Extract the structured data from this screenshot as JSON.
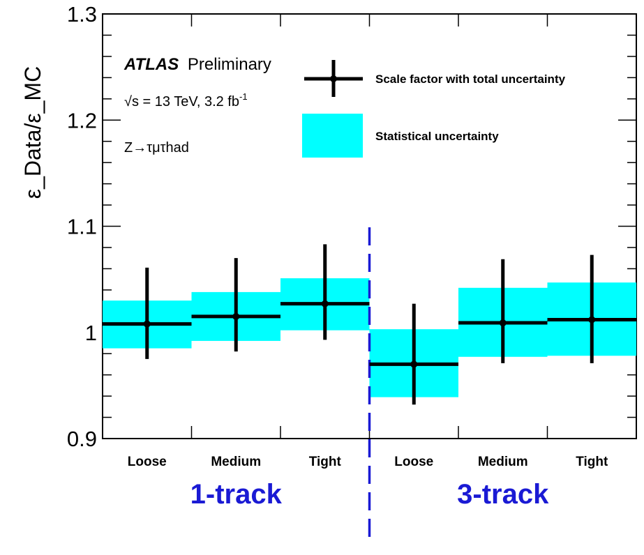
{
  "chart_data": {
    "type": "scatter",
    "categories": [
      "Loose",
      "Medium",
      "Tight",
      "Loose",
      "Medium",
      "Tight"
    ],
    "groups": [
      "1-track",
      "3-track"
    ],
    "ylabel": "ε_Data/ε_MC",
    "ylim": [
      0.9,
      1.3
    ],
    "ytick_labels": [
      "0.9",
      "1",
      "1.1",
      "1.2",
      "1.3"
    ],
    "annotations": {
      "experiment": "ATLAS",
      "status": "Preliminary",
      "energy": "√s = 13 TeV, 3.2 fb",
      "energy_sup": "-1",
      "process": "Z→τμτhad"
    },
    "legend": {
      "total": "Scale factor with total uncertainty",
      "stat": "Statistical uncertainty",
      "placement": "top-right"
    },
    "series": [
      {
        "name": "Scale factor with total uncertainty",
        "values": [
          1.008,
          1.015,
          1.027,
          0.97,
          1.009,
          1.012
        ],
        "err_low": [
          0.975,
          0.982,
          0.993,
          0.932,
          0.971,
          0.971
        ],
        "err_high": [
          1.061,
          1.07,
          1.083,
          1.027,
          1.069,
          1.073
        ]
      },
      {
        "name": "Statistical uncertainty",
        "band_low": [
          0.985,
          0.992,
          1.002,
          0.939,
          0.977,
          0.978
        ],
        "band_high": [
          1.03,
          1.038,
          1.051,
          1.003,
          1.042,
          1.047
        ]
      }
    ],
    "colors": {
      "marker": "#000000",
      "band": "#00ffff",
      "divider": "#1a1ad4",
      "group_label": "#1a1ad4"
    }
  }
}
